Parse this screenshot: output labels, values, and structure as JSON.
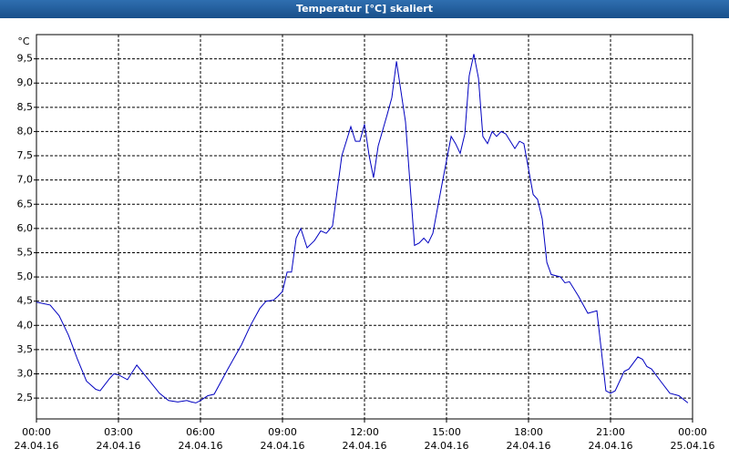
{
  "chart_data": {
    "type": "line",
    "title": "Temperatur [°C] skaliert",
    "y_unit": "°C",
    "xlim": [
      0,
      24
    ],
    "ylim": [
      2.07,
      10.0
    ],
    "grid": true,
    "xticks": [
      {
        "value": 0,
        "label": "00:00",
        "date": "24.04.16"
      },
      {
        "value": 3,
        "label": "03:00",
        "date": "24.04.16"
      },
      {
        "value": 6,
        "label": "06:00",
        "date": "24.04.16"
      },
      {
        "value": 9,
        "label": "09:00",
        "date": "24.04.16"
      },
      {
        "value": 12,
        "label": "12:00",
        "date": "24.04.16"
      },
      {
        "value": 15,
        "label": "15:00",
        "date": "24.04.16"
      },
      {
        "value": 18,
        "label": "18:00",
        "date": "24.04.16"
      },
      {
        "value": 21,
        "label": "21:00",
        "date": "24.04.16"
      },
      {
        "value": 24,
        "label": "00:00",
        "date": "25.04.16"
      }
    ],
    "yticks": [
      {
        "value": 2.5,
        "label": "2,5"
      },
      {
        "value": 3,
        "label": "3,0"
      },
      {
        "value": 3.5,
        "label": "3,5"
      },
      {
        "value": 4,
        "label": "4,0"
      },
      {
        "value": 4.5,
        "label": "4,5"
      },
      {
        "value": 5,
        "label": "5,0"
      },
      {
        "value": 5.5,
        "label": "5,5"
      },
      {
        "value": 6,
        "label": "6,0"
      },
      {
        "value": 6.5,
        "label": "6,5"
      },
      {
        "value": 7,
        "label": "7,0"
      },
      {
        "value": 7.5,
        "label": "7,5"
      },
      {
        "value": 8,
        "label": "8,0"
      },
      {
        "value": 8.5,
        "label": "8,5"
      },
      {
        "value": 9,
        "label": "9,0"
      },
      {
        "value": 9.5,
        "label": "9,5"
      }
    ],
    "x": [
      0,
      0.5,
      0.83,
      1.17,
      1.5,
      1.83,
      2.17,
      2.33,
      2.67,
      2.83,
      3,
      3.33,
      3.67,
      4,
      4.5,
      4.83,
      5.17,
      5.5,
      5.67,
      5.83,
      6,
      6.27,
      6.5,
      7,
      7.5,
      7.83,
      8.17,
      8.4,
      8.67,
      8.83,
      9,
      9.17,
      9.33,
      9.5,
      9.67,
      9.9,
      10.17,
      10.4,
      10.6,
      10.83,
      11.17,
      11.5,
      11.67,
      11.83,
      12,
      12.17,
      12.33,
      12.5,
      12.83,
      13,
      13.17,
      13.5,
      13.83,
      14,
      14.17,
      14.33,
      14.5,
      14.83,
      15.17,
      15.33,
      15.5,
      15.67,
      15.83,
      16,
      16.17,
      16.33,
      16.5,
      16.67,
      16.83,
      17,
      17.17,
      17.5,
      17.67,
      17.83,
      18.17,
      18.33,
      18.5,
      18.67,
      18.83,
      19.17,
      19.33,
      19.5,
      19.83,
      20.17,
      20.5,
      20.83,
      21,
      21.17,
      21.5,
      21.67,
      22,
      22.17,
      22.33,
      22.5,
      22.83,
      23.17,
      23.5,
      23.83
    ],
    "series": [
      {
        "name": "Temperatur",
        "color": "#0000c0",
        "values": [
          4.48,
          4.42,
          4.2,
          3.8,
          3.3,
          2.85,
          2.68,
          2.65,
          2.9,
          3.0,
          2.98,
          2.88,
          3.18,
          2.95,
          2.6,
          2.45,
          2.42,
          2.45,
          2.42,
          2.4,
          2.45,
          2.55,
          2.58,
          3.1,
          3.6,
          4.0,
          4.35,
          4.5,
          4.52,
          4.6,
          4.7,
          5.1,
          5.1,
          5.8,
          6.0,
          5.6,
          5.75,
          5.95,
          5.9,
          6.05,
          7.5,
          8.1,
          7.8,
          7.8,
          8.15,
          7.5,
          7.05,
          7.7,
          8.35,
          8.7,
          9.45,
          8.2,
          5.65,
          5.7,
          5.8,
          5.7,
          5.9,
          6.9,
          7.9,
          7.75,
          7.55,
          7.95,
          9.15,
          9.6,
          9.1,
          7.9,
          7.75,
          8.0,
          7.9,
          8.0,
          7.95,
          7.65,
          7.8,
          7.75,
          6.7,
          6.6,
          6.2,
          5.3,
          5.05,
          5.0,
          4.88,
          4.9,
          4.6,
          4.25,
          4.3,
          2.65,
          2.6,
          2.65,
          3.05,
          3.1,
          3.35,
          3.3,
          3.15,
          3.1,
          2.85,
          2.6,
          2.55,
          2.4
        ]
      }
    ]
  }
}
